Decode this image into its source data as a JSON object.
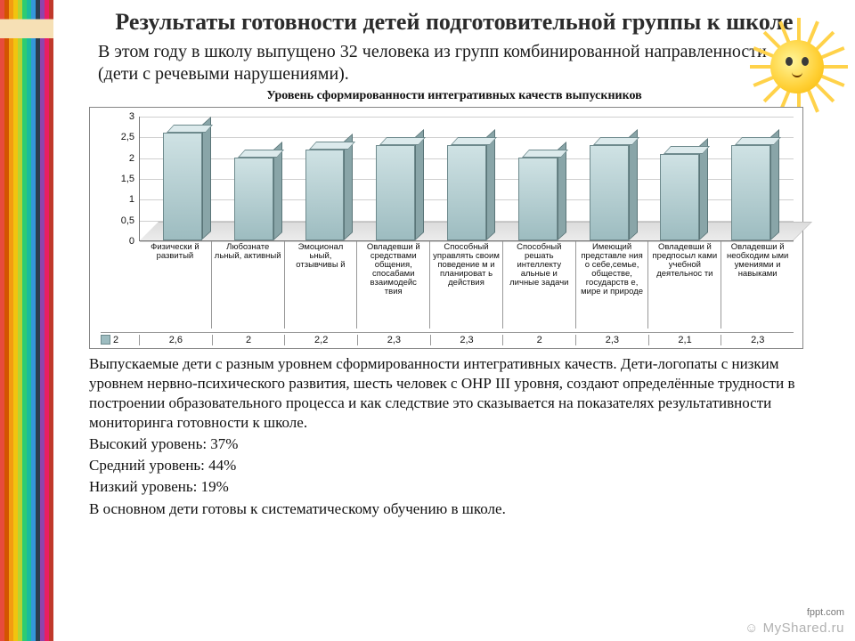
{
  "decor": {
    "pencil_colors": [
      "#e74c3c",
      "#d35400",
      "#f39c12",
      "#f1c40f",
      "#b7d332",
      "#2ecc71",
      "#1abc9c",
      "#3498db",
      "#2c3e50",
      "#8e44ad",
      "#e91e63",
      "#c0392b"
    ]
  },
  "title": "Результаты готовности детей подготовительной группы к школе",
  "lead": "В этом году в школу выпущено 32 человека из групп комбинированной направленности (дети с речевыми нарушениями).",
  "chart": {
    "title": "Уровень сформированности интегративных качеств выпускников",
    "type": "bar",
    "ylim": [
      0,
      3
    ],
    "ytick_step": 0.5,
    "yticks": [
      "0",
      "0,5",
      "1",
      "1,5",
      "2",
      "2,5",
      "3"
    ],
    "bar_color": "#9dbcc0",
    "bar_top_color": "#dceaec",
    "bar_side_color": "#89a5a8",
    "grid_color": "#cfcfcf",
    "background_color": "#ffffff",
    "series_label": "2",
    "categories": [
      "Физически й развитый",
      "Любознате льный, активный",
      "Эмоционал ьный, отзывчивы й",
      "Овладевши й средствами общения, спосабами взаимодейс твия",
      "Способный управлять своим поведение м и планироват ь действия",
      "Способный решать интеллекту альные и личные задачи",
      "Имеющий представле ния о себе,семье, обществе, государств е, мире и природе",
      "Овладевши й предпосыл ками учебной деятельнос ти",
      "Овладевши й необходим ыми умениями и навыками"
    ],
    "values_display": [
      "2,6",
      "2",
      "2,2",
      "2,3",
      "2,3",
      "2",
      "2,3",
      "2,1",
      "2,3"
    ],
    "values": [
      2.6,
      2.0,
      2.2,
      2.3,
      2.3,
      2.0,
      2.3,
      2.1,
      2.3
    ]
  },
  "body": {
    "p1": "Выпускаемые дети с разным уровнем сформированности интегративных качеств. Дети-логопаты с низким уровнем нервно-психического развития, шесть человек с ОНР III уровня, создают определённые трудности в построении образовательного процесса и как следствие это сказывается на показателях результативности мониторинга готовности к школе.",
    "hi": "Высокий уровень: 37%",
    "mid": "Средний уровень: 44%",
    "low": "Низкий уровень: 19%",
    "concl": "В основном дети готовы к систематическому обучению в школе."
  },
  "watermarks": {
    "fppt": "fppt.com",
    "site": "☺ MyShared.ru"
  }
}
